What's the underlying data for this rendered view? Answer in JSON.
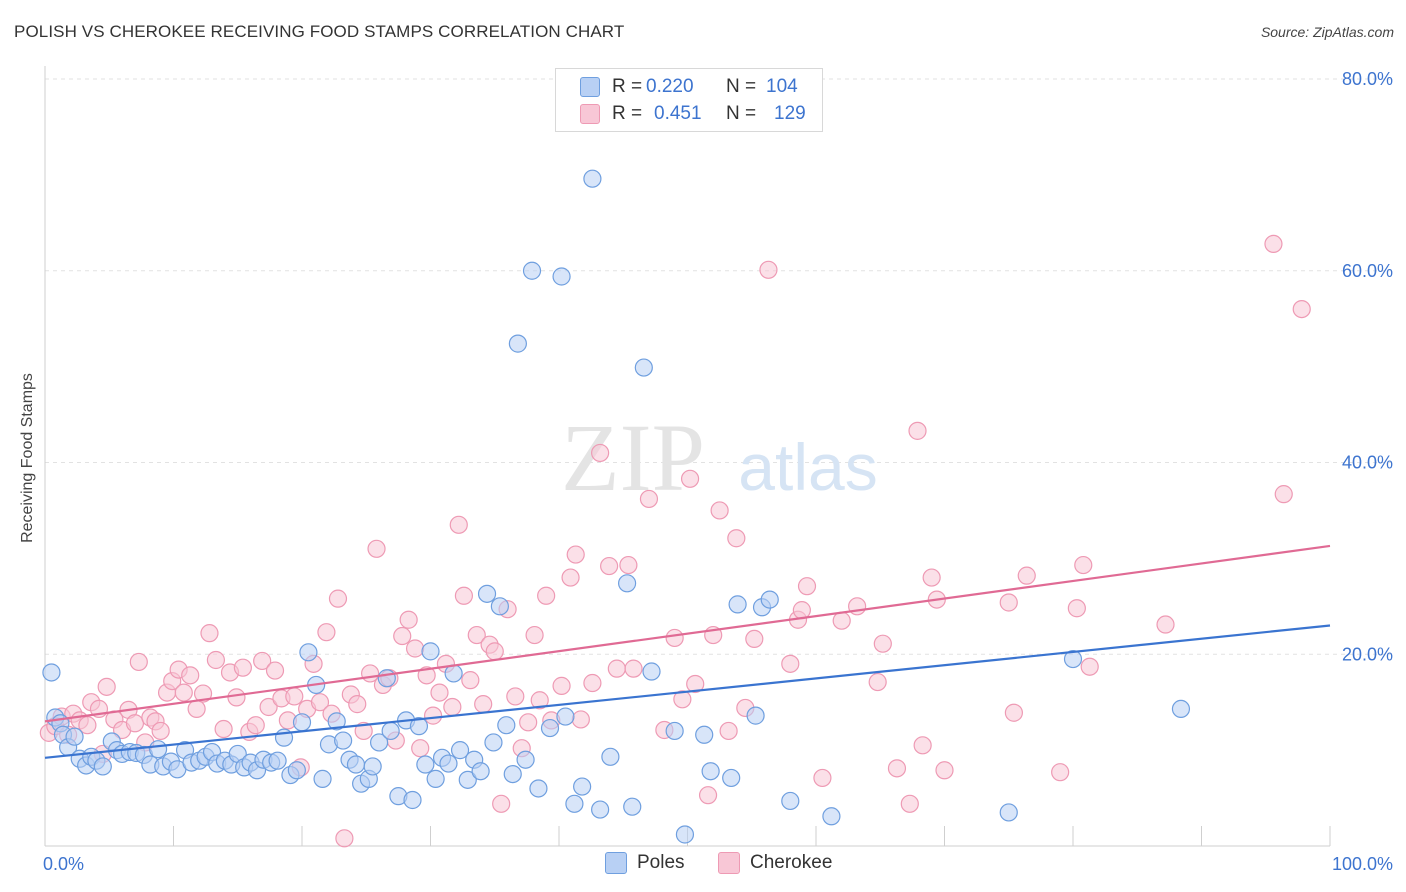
{
  "title": "POLISH VS CHEROKEE RECEIVING FOOD STAMPS CORRELATION CHART",
  "source": "Source: ZipAtlas.com",
  "watermark": {
    "zip": "ZIP",
    "atlas": "atlas"
  },
  "legend_stats": [
    {
      "r_label": "R =",
      "r_value": "0.220",
      "n_label": "N =",
      "n_value": "104"
    },
    {
      "r_label": "R =",
      "r_value": "0.451",
      "n_label": "N =",
      "n_value": "129"
    }
  ],
  "chart_data": {
    "type": "scatter",
    "title": "POLISH VS CHEROKEE RECEIVING FOOD STAMPS CORRELATION CHART",
    "xlabel": "",
    "ylabel": "Receiving Food Stamps",
    "xlim": [
      0,
      100
    ],
    "ylim": [
      0,
      80
    ],
    "grid": true,
    "x_tick_labels": [
      "0.0%",
      "100.0%"
    ],
    "y_tick_values": [
      20,
      40,
      60,
      80
    ],
    "y_tick_labels": [
      "20.0%",
      "40.0%",
      "60.0%",
      "80.0%"
    ],
    "legend_position": "bottom",
    "series": [
      {
        "name": "Poles",
        "color": "#6f9fdf",
        "fill": "#b8d0f4",
        "line_color": "#3a74d0",
        "r": 0.22,
        "n": 104,
        "trend": {
          "x": [
            0,
            100
          ],
          "y": [
            9.2,
            23.0
          ]
        },
        "points": [
          [
            0.5,
            18.1
          ],
          [
            0.8,
            13.4
          ],
          [
            1.2,
            12.8
          ],
          [
            1.4,
            11.6
          ],
          [
            1.8,
            10.3
          ],
          [
            2.3,
            11.4
          ],
          [
            2.7,
            9.1
          ],
          [
            3.2,
            8.4
          ],
          [
            3.6,
            9.3
          ],
          [
            4.0,
            8.9
          ],
          [
            4.5,
            8.3
          ],
          [
            5.2,
            10.9
          ],
          [
            5.6,
            10.0
          ],
          [
            6.0,
            9.6
          ],
          [
            6.6,
            9.8
          ],
          [
            7.1,
            9.7
          ],
          [
            7.7,
            9.5
          ],
          [
            8.2,
            8.5
          ],
          [
            8.8,
            10.1
          ],
          [
            9.2,
            8.3
          ],
          [
            9.8,
            8.8
          ],
          [
            10.3,
            8.0
          ],
          [
            10.9,
            10.0
          ],
          [
            11.4,
            8.7
          ],
          [
            12.0,
            8.9
          ],
          [
            12.5,
            9.3
          ],
          [
            13.0,
            9.8
          ],
          [
            13.4,
            8.6
          ],
          [
            14.0,
            8.9
          ],
          [
            14.5,
            8.5
          ],
          [
            15.0,
            9.6
          ],
          [
            15.5,
            8.2
          ],
          [
            16.0,
            8.7
          ],
          [
            16.5,
            7.9
          ],
          [
            17.0,
            9.0
          ],
          [
            17.6,
            8.7
          ],
          [
            18.1,
            8.9
          ],
          [
            18.6,
            11.3
          ],
          [
            19.1,
            7.4
          ],
          [
            19.6,
            7.9
          ],
          [
            20.0,
            12.9
          ],
          [
            20.5,
            20.2
          ],
          [
            21.1,
            16.8
          ],
          [
            21.6,
            7.0
          ],
          [
            22.1,
            10.6
          ],
          [
            22.7,
            13.0
          ],
          [
            23.2,
            11.0
          ],
          [
            23.7,
            9.0
          ],
          [
            24.2,
            8.5
          ],
          [
            24.6,
            6.5
          ],
          [
            25.2,
            7.0
          ],
          [
            25.5,
            8.3
          ],
          [
            26.0,
            10.8
          ],
          [
            26.6,
            17.5
          ],
          [
            26.9,
            12.0
          ],
          [
            27.5,
            5.2
          ],
          [
            28.1,
            13.1
          ],
          [
            28.6,
            4.8
          ],
          [
            29.1,
            12.5
          ],
          [
            29.6,
            8.5
          ],
          [
            30.0,
            20.3
          ],
          [
            30.4,
            7.0
          ],
          [
            30.9,
            9.2
          ],
          [
            31.4,
            8.6
          ],
          [
            31.8,
            18.0
          ],
          [
            32.3,
            10.0
          ],
          [
            32.9,
            6.9
          ],
          [
            33.4,
            9.0
          ],
          [
            33.9,
            7.8
          ],
          [
            34.4,
            26.3
          ],
          [
            34.9,
            10.8
          ],
          [
            35.4,
            25.0
          ],
          [
            35.9,
            12.6
          ],
          [
            36.4,
            7.5
          ],
          [
            36.8,
            52.4
          ],
          [
            37.4,
            9.0
          ],
          [
            37.9,
            60.0
          ],
          [
            38.4,
            6.0
          ],
          [
            39.3,
            12.3
          ],
          [
            40.2,
            59.4
          ],
          [
            40.5,
            13.5
          ],
          [
            41.2,
            4.4
          ],
          [
            41.8,
            6.2
          ],
          [
            42.6,
            69.6
          ],
          [
            43.2,
            3.8
          ],
          [
            44.0,
            9.3
          ],
          [
            45.3,
            27.4
          ],
          [
            45.7,
            4.1
          ],
          [
            46.6,
            49.9
          ],
          [
            47.2,
            18.2
          ],
          [
            49.0,
            12.0
          ],
          [
            49.8,
            1.2
          ],
          [
            51.3,
            11.6
          ],
          [
            51.8,
            7.8
          ],
          [
            53.4,
            7.1
          ],
          [
            53.9,
            25.2
          ],
          [
            55.3,
            13.6
          ],
          [
            55.8,
            24.9
          ],
          [
            56.4,
            25.7
          ],
          [
            58.0,
            4.7
          ],
          [
            61.2,
            3.1
          ],
          [
            75.0,
            3.5
          ],
          [
            80.0,
            19.5
          ],
          [
            88.4,
            14.3
          ]
        ]
      },
      {
        "name": "Cherokee",
        "color": "#ee9ab4",
        "fill": "#f8c7d6",
        "line_color": "#e06a94",
        "r": 0.451,
        "n": 129,
        "trend": {
          "x": [
            0,
            100
          ],
          "y": [
            13.0,
            31.3
          ]
        },
        "points": [
          [
            0.3,
            11.8
          ],
          [
            0.8,
            12.5
          ],
          [
            1.3,
            13.5
          ],
          [
            1.8,
            11.6
          ],
          [
            2.2,
            13.8
          ],
          [
            2.7,
            13.1
          ],
          [
            3.3,
            12.6
          ],
          [
            3.6,
            15.0
          ],
          [
            4.2,
            14.3
          ],
          [
            4.5,
            9.6
          ],
          [
            4.8,
            16.6
          ],
          [
            5.4,
            13.2
          ],
          [
            6.0,
            12.1
          ],
          [
            6.5,
            14.2
          ],
          [
            7.0,
            12.8
          ],
          [
            7.3,
            19.2
          ],
          [
            7.8,
            10.8
          ],
          [
            8.2,
            13.4
          ],
          [
            8.6,
            13.0
          ],
          [
            9.0,
            12.0
          ],
          [
            9.5,
            16.0
          ],
          [
            9.9,
            17.2
          ],
          [
            10.4,
            18.4
          ],
          [
            10.8,
            16.0
          ],
          [
            11.3,
            17.8
          ],
          [
            11.8,
            14.3
          ],
          [
            12.3,
            15.9
          ],
          [
            12.8,
            22.2
          ],
          [
            13.3,
            19.4
          ],
          [
            13.9,
            12.2
          ],
          [
            14.4,
            18.1
          ],
          [
            14.9,
            15.5
          ],
          [
            15.4,
            18.6
          ],
          [
            15.9,
            11.9
          ],
          [
            16.4,
            12.6
          ],
          [
            16.9,
            19.3
          ],
          [
            17.4,
            14.5
          ],
          [
            17.9,
            18.3
          ],
          [
            18.4,
            15.4
          ],
          [
            18.9,
            13.1
          ],
          [
            19.4,
            15.6
          ],
          [
            19.9,
            8.2
          ],
          [
            20.4,
            14.3
          ],
          [
            20.9,
            19.0
          ],
          [
            21.4,
            15.0
          ],
          [
            21.9,
            22.3
          ],
          [
            22.3,
            13.8
          ],
          [
            22.8,
            25.8
          ],
          [
            23.3,
            0.8
          ],
          [
            23.8,
            15.8
          ],
          [
            24.3,
            14.8
          ],
          [
            24.8,
            12.0
          ],
          [
            25.3,
            18.0
          ],
          [
            25.8,
            31.0
          ],
          [
            26.3,
            16.8
          ],
          [
            26.8,
            17.5
          ],
          [
            27.3,
            11.0
          ],
          [
            27.8,
            21.9
          ],
          [
            28.3,
            23.6
          ],
          [
            28.8,
            20.6
          ],
          [
            29.2,
            10.2
          ],
          [
            29.7,
            17.8
          ],
          [
            30.2,
            13.6
          ],
          [
            30.7,
            16.0
          ],
          [
            31.2,
            19.0
          ],
          [
            31.7,
            14.5
          ],
          [
            32.2,
            33.5
          ],
          [
            32.6,
            26.1
          ],
          [
            33.1,
            17.3
          ],
          [
            33.6,
            22.0
          ],
          [
            34.1,
            14.8
          ],
          [
            34.6,
            21.0
          ],
          [
            35.0,
            20.3
          ],
          [
            35.5,
            4.4
          ],
          [
            36.0,
            24.7
          ],
          [
            36.6,
            15.6
          ],
          [
            37.1,
            10.2
          ],
          [
            37.6,
            12.9
          ],
          [
            38.1,
            22.0
          ],
          [
            38.5,
            15.2
          ],
          [
            39.0,
            26.1
          ],
          [
            39.4,
            13.1
          ],
          [
            40.2,
            16.7
          ],
          [
            40.9,
            28.0
          ],
          [
            41.3,
            30.4
          ],
          [
            41.7,
            13.2
          ],
          [
            42.6,
            17.0
          ],
          [
            43.2,
            41.0
          ],
          [
            43.9,
            29.2
          ],
          [
            44.5,
            18.5
          ],
          [
            45.4,
            29.3
          ],
          [
            45.8,
            18.5
          ],
          [
            47.0,
            36.2
          ],
          [
            48.2,
            12.1
          ],
          [
            49.0,
            21.7
          ],
          [
            49.6,
            15.3
          ],
          [
            50.2,
            38.3
          ],
          [
            50.6,
            16.9
          ],
          [
            51.6,
            5.3
          ],
          [
            52.0,
            22.0
          ],
          [
            52.5,
            35.0
          ],
          [
            53.2,
            12.0
          ],
          [
            53.8,
            32.1
          ],
          [
            54.5,
            14.4
          ],
          [
            55.2,
            21.6
          ],
          [
            56.3,
            60.1
          ],
          [
            58.0,
            19.0
          ],
          [
            58.6,
            23.6
          ],
          [
            58.9,
            24.6
          ],
          [
            59.3,
            27.1
          ],
          [
            60.5,
            7.1
          ],
          [
            62.0,
            23.5
          ],
          [
            63.2,
            25.0
          ],
          [
            64.8,
            17.1
          ],
          [
            65.2,
            21.1
          ],
          [
            66.3,
            8.1
          ],
          [
            67.3,
            4.4
          ],
          [
            67.9,
            43.3
          ],
          [
            68.3,
            10.5
          ],
          [
            69.0,
            28.0
          ],
          [
            69.4,
            25.7
          ],
          [
            70.0,
            7.9
          ],
          [
            75.0,
            25.4
          ],
          [
            75.4,
            13.9
          ],
          [
            76.4,
            28.2
          ],
          [
            79.0,
            7.7
          ],
          [
            80.3,
            24.8
          ],
          [
            80.8,
            29.3
          ],
          [
            81.3,
            18.7
          ],
          [
            87.2,
            23.1
          ],
          [
            95.6,
            62.8
          ],
          [
            96.4,
            36.7
          ],
          [
            97.8,
            56.0
          ]
        ]
      }
    ]
  }
}
